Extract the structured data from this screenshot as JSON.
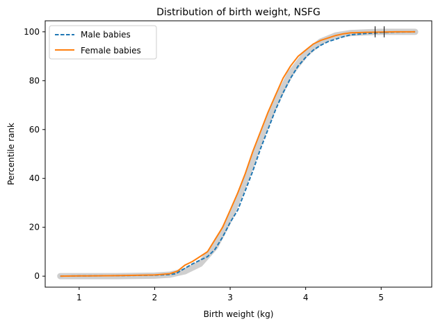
{
  "chart_data": {
    "type": "line",
    "title": "Distribution of birth weight, NSFG",
    "xlabel": "Birth weight (kg)",
    "ylabel": "Percentile rank",
    "xlim": [
      0.55,
      5.67
    ],
    "ylim": [
      -4.5,
      104.5
    ],
    "xticks": [
      1,
      2,
      3,
      4,
      5
    ],
    "yticks": [
      0,
      20,
      40,
      60,
      80,
      100
    ],
    "grid": false,
    "legend_position": "upper-left",
    "series": [
      {
        "name": "Male babies",
        "style": "dashed",
        "color": "#1f77b4",
        "x": [
          0.75,
          1.0,
          1.5,
          2.0,
          2.2,
          2.28,
          2.35,
          2.5,
          2.6,
          2.7,
          2.8,
          2.9,
          3.0,
          3.1,
          3.2,
          3.3,
          3.4,
          3.5,
          3.6,
          3.7,
          3.8,
          3.9,
          4.0,
          4.1,
          4.2,
          4.3,
          4.4,
          4.5,
          4.6,
          4.8,
          5.0,
          5.2,
          5.45
        ],
        "y": [
          0,
          0.1,
          0.2,
          0.4,
          0.7,
          1.0,
          2.3,
          5.0,
          6.5,
          8.0,
          11.0,
          16.0,
          22.0,
          27.0,
          35.0,
          43.0,
          52.0,
          60.0,
          68.0,
          75.0,
          81.0,
          86.0,
          89.5,
          92.5,
          94.5,
          96.0,
          97.0,
          98.0,
          98.8,
          99.3,
          99.7,
          99.9,
          100
        ]
      },
      {
        "name": "Female babies",
        "style": "solid",
        "color": "#ff7f0e",
        "x": [
          0.75,
          1.0,
          1.5,
          2.0,
          2.2,
          2.3,
          2.4,
          2.5,
          2.6,
          2.7,
          2.8,
          2.9,
          3.0,
          3.1,
          3.2,
          3.3,
          3.4,
          3.5,
          3.6,
          3.7,
          3.8,
          3.9,
          4.0,
          4.1,
          4.2,
          4.3,
          4.4,
          4.5,
          4.6,
          4.8,
          5.0,
          5.2,
          5.45
        ],
        "y": [
          0,
          0.1,
          0.2,
          0.5,
          1.0,
          2.0,
          4.5,
          6.0,
          8.0,
          10.0,
          15.0,
          20.0,
          27.0,
          34.0,
          42.0,
          51.0,
          59.0,
          67.0,
          74.0,
          81.0,
          86.0,
          90.0,
          92.5,
          95.0,
          96.5,
          97.5,
          98.5,
          99.2,
          99.6,
          99.8,
          99.9,
          100,
          100
        ]
      }
    ],
    "model_band": {
      "color": "#cccccc",
      "x": [
        0.75,
        1.5,
        2.0,
        2.2,
        2.4,
        2.6,
        2.8,
        3.0,
        3.2,
        3.4,
        3.6,
        3.8,
        4.0,
        4.2,
        4.4,
        4.6,
        4.8,
        5.0,
        5.45
      ],
      "y": [
        0,
        0,
        0.2,
        0.6,
        2.0,
        5.0,
        12.0,
        24.0,
        39.0,
        56.0,
        71.0,
        83.0,
        91.0,
        96.0,
        98.5,
        99.5,
        99.8,
        100,
        100
      ]
    },
    "tick_marks_x": [
      4.92,
      5.04
    ]
  }
}
